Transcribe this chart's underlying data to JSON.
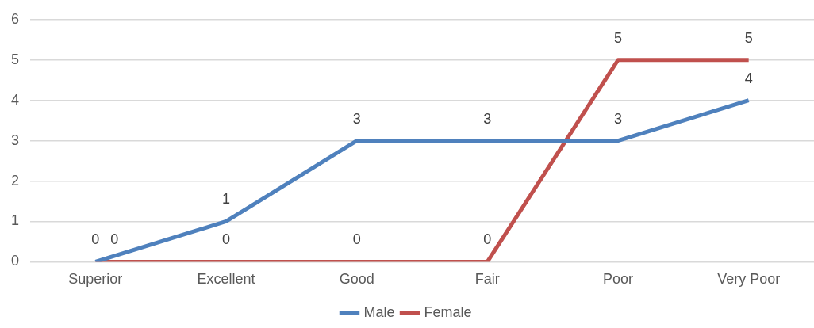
{
  "chart_data": {
    "type": "line",
    "categories": [
      "Superior",
      "Excellent",
      "Good",
      "Fair",
      "Poor",
      "Very Poor"
    ],
    "series": [
      {
        "name": "Male",
        "color": "#4f81bd",
        "values": [
          0,
          1,
          3,
          3,
          3,
          4
        ]
      },
      {
        "name": "Female",
        "color": "#c0504d",
        "values": [
          0,
          0,
          0,
          0,
          5,
          5
        ]
      }
    ],
    "ylim": [
      0,
      6
    ],
    "yticks": [
      0,
      1,
      2,
      3,
      4,
      5,
      6
    ],
    "grid": "y",
    "legend": "bottom",
    "data_labels": true,
    "marker": "none",
    "line_style": "solid"
  }
}
